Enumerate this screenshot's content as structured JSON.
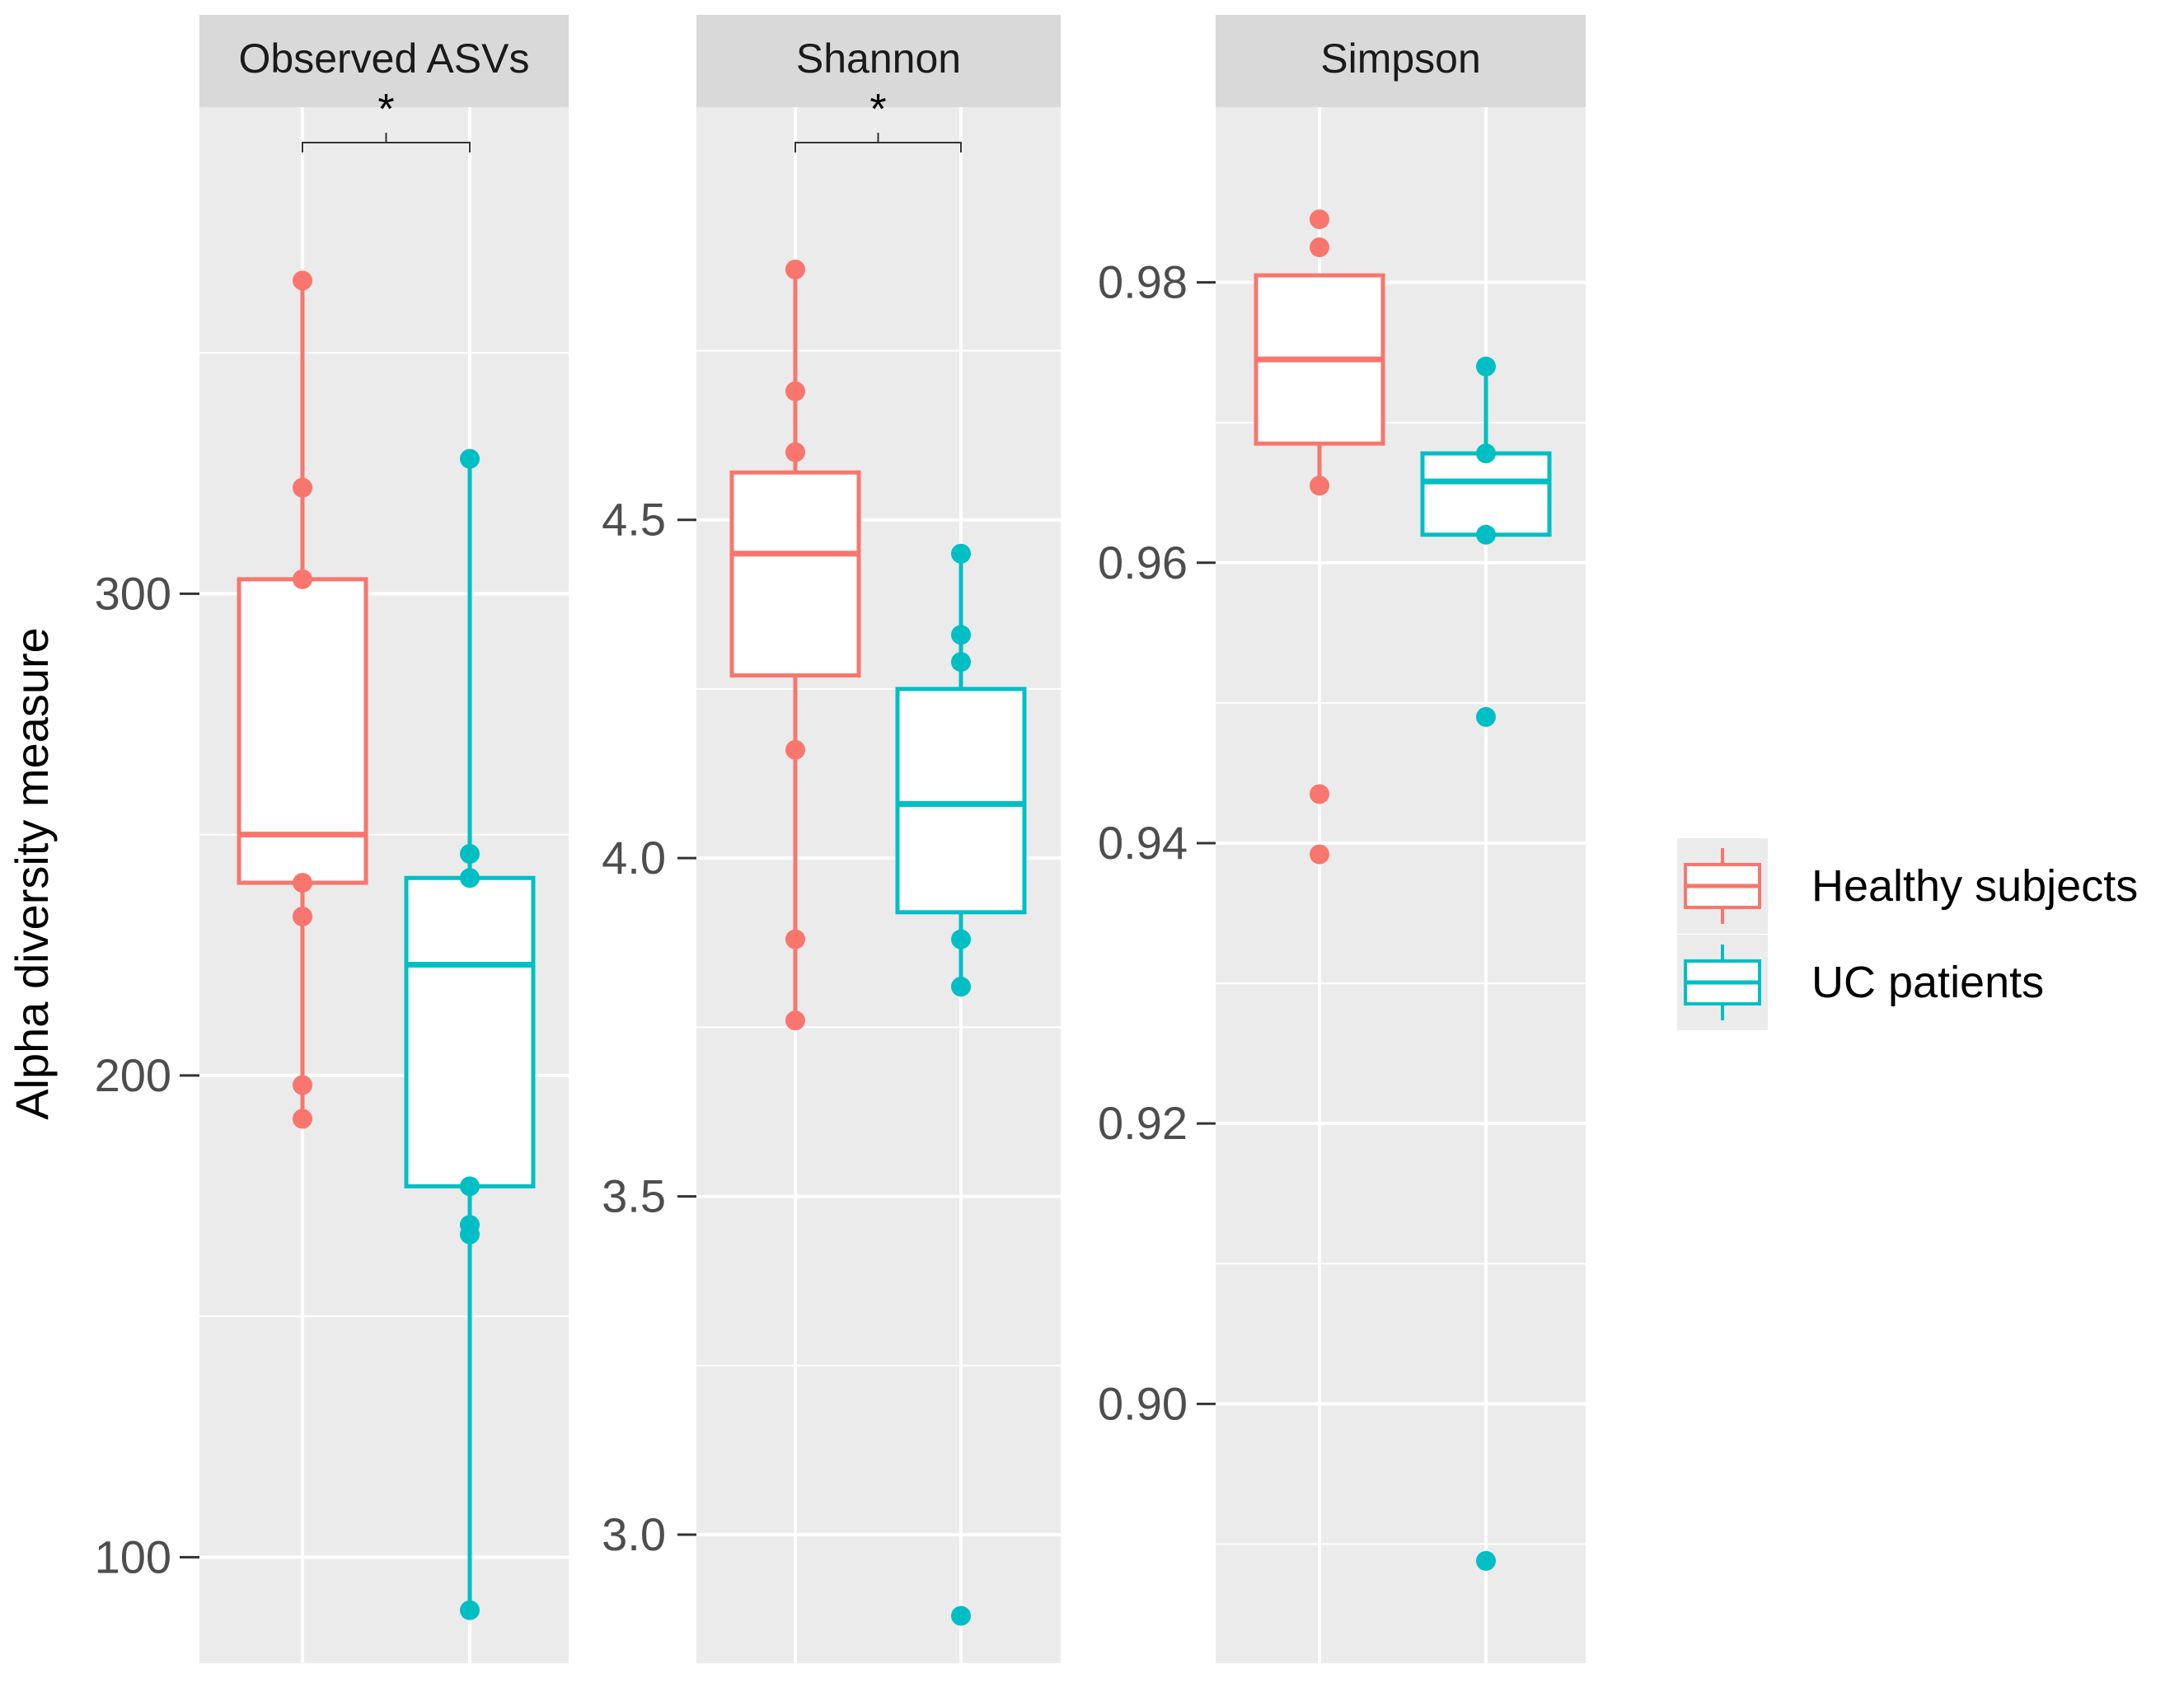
{
  "chart_data": {
    "type": "boxplot",
    "ylabel": "Alpha diversity measure",
    "groups": [
      {
        "name": "Healthy subjects",
        "color": "#F8766D"
      },
      {
        "name": "UC patients",
        "color": "#00BFC4"
      }
    ],
    "legend": {
      "placement": "right",
      "entries": [
        "Healthy subjects",
        "UC patients"
      ]
    },
    "panels": [
      {
        "title": "Observed ASVs",
        "significance": "*",
        "ylim": [
          78,
          401
        ],
        "yticks": [
          100,
          200,
          300
        ],
        "ytick_labels": [
          "100",
          "200",
          "300"
        ],
        "minor_ticks": [
          150,
          250,
          350
        ],
        "boxes": [
          {
            "group": "Healthy subjects",
            "q1": 240,
            "median": 250,
            "q3": 303,
            "whisker_low": 191,
            "whisker_high": 365,
            "points": [
              365,
              322,
              303,
              240,
              233,
              198,
              191
            ]
          },
          {
            "group": "UC patients",
            "q1": 177,
            "median": 223,
            "q3": 241,
            "whisker_low": 89,
            "whisker_high": 328,
            "points": [
              328,
              246,
              241,
              177,
              169,
              167,
              89
            ]
          }
        ]
      },
      {
        "title": "Shannon",
        "significance": "*",
        "ylim": [
          2.81,
          5.11
        ],
        "yticks": [
          3.0,
          3.5,
          4.0,
          4.5
        ],
        "ytick_labels": [
          "3.0",
          "3.5",
          "4.0",
          "4.5"
        ],
        "minor_ticks": [
          3.25,
          3.75,
          4.25,
          4.75
        ],
        "boxes": [
          {
            "group": "Healthy subjects",
            "q1": 4.27,
            "median": 4.45,
            "q3": 4.57,
            "whisker_low": 3.76,
            "whisker_high": 4.87,
            "points": [
              4.87,
              4.69,
              4.6,
              4.16,
              3.88,
              3.76
            ]
          },
          {
            "group": "UC patients",
            "q1": 3.92,
            "median": 4.08,
            "q3": 4.25,
            "whisker_low": 3.81,
            "whisker_high": 4.45,
            "points": [
              4.45,
              4.33,
              4.29,
              3.88,
              3.81,
              2.88
            ]
          }
        ]
      },
      {
        "title": "Simpson",
        "significance": "",
        "ylim": [
          0.8815,
          0.9925
        ],
        "yticks": [
          0.9,
          0.92,
          0.94,
          0.96,
          0.98
        ],
        "ytick_labels": [
          "0.90",
          "0.92",
          "0.94",
          "0.96",
          "0.98"
        ],
        "minor_ticks": [
          0.89,
          0.91,
          0.93,
          0.95,
          0.97
        ],
        "boxes": [
          {
            "group": "Healthy subjects",
            "q1": 0.9685,
            "median": 0.9745,
            "q3": 0.9805,
            "whisker_low": 0.9655,
            "whisker_high": 0.9805,
            "points": [
              0.9845,
              0.9825,
              0.9655,
              0.9435,
              0.9392
            ]
          },
          {
            "group": "UC patients",
            "q1": 0.962,
            "median": 0.9658,
            "q3": 0.9678,
            "whisker_low": 0.962,
            "whisker_high": 0.974,
            "points": [
              0.974,
              0.9678,
              0.962,
              0.949,
              0.8888
            ]
          }
        ]
      }
    ]
  }
}
